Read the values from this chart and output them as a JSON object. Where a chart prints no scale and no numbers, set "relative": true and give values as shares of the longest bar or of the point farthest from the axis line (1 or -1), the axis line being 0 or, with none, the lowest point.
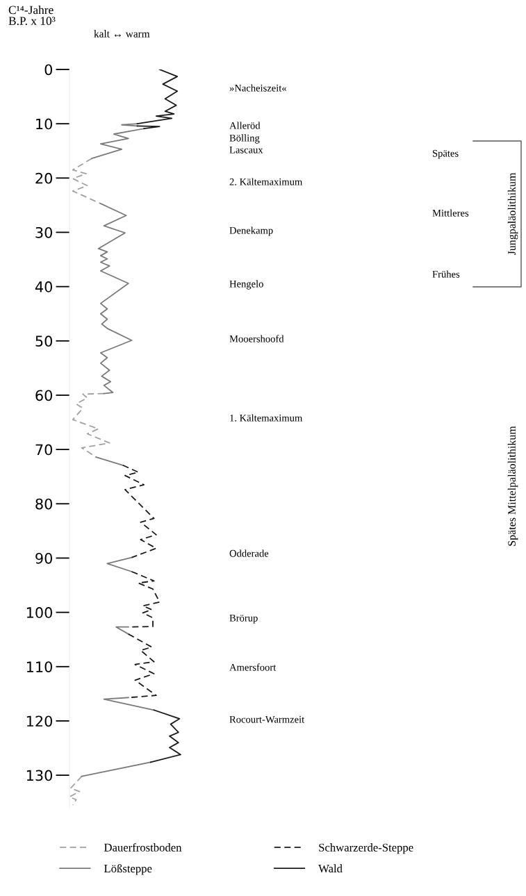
{
  "chart_data": {
    "type": "line",
    "orientation": "horizontal",
    "relative": true,
    "xlabel": "kalt ↔ warm",
    "ylabel": "C¹⁴-Jahre\nB.P. x 10³",
    "ylim": [
      136,
      0
    ],
    "yticks": [
      0,
      10,
      20,
      30,
      40,
      50,
      60,
      70,
      80,
      90,
      100,
      110,
      120,
      130
    ],
    "legend": "bottom",
    "series": [
      {
        "name": "Dauerfrostboden",
        "color": "#a0a0a0",
        "line_style": "dashed",
        "x": [
          16.4,
          18.5,
          19.2,
          20.1,
          21.4,
          22.4,
          24.7,
          null,
          59.7,
          59.8,
          60.5,
          61.6,
          62.4,
          64.5,
          66.2,
          67.1,
          68.8,
          69.7,
          71.4,
          null,
          130.2,
          132.4,
          133.0,
          134.0,
          134.5,
          135.5
        ],
        "values": [
          0.2,
          0.03,
          0.15,
          0.03,
          0.16,
          0.03,
          0.28,
          null,
          0.31,
          0.12,
          0.16,
          0.06,
          0.12,
          0.03,
          0.26,
          0.16,
          0.36,
          0.11,
          0.24,
          null,
          0.11,
          0.01,
          0.09,
          0,
          0.06,
          0.03
        ]
      },
      {
        "name": "Lößsteppe",
        "color": "#7a7a7a",
        "line_style": "solid",
        "x": [
          10.0,
          10.2,
          10.4,
          null,
          10.9,
          11.9,
          12.7,
          13.7,
          14.7,
          16.4,
          null,
          24.7,
          26.9,
          28.8,
          30.1,
          33.0,
          33.6,
          34.3,
          34.9,
          35.5,
          36.2,
          37.1,
          39.4,
          43.1,
          44.1,
          45.0,
          46.0,
          46.9,
          47.7,
          49.9,
          52.2,
          53.1,
          54.1,
          55.4,
          56.5,
          57.5,
          58.2,
          59.5,
          59.7,
          null,
          71.4,
          72.9,
          null,
          89.9,
          91.0,
          92.5,
          null,
          102.7,
          102.7,
          104.0,
          null,
          115.7,
          116.0,
          118.0,
          null,
          127.6,
          130.2
        ],
        "values": [
          0.61,
          0.47,
          0.61,
          null,
          0.67,
          0.4,
          0.53,
          0.28,
          0.47,
          0.2,
          null,
          0.28,
          0.51,
          0.31,
          0.5,
          0.26,
          0.34,
          0.28,
          0.34,
          0.28,
          0.36,
          0.28,
          0.53,
          0.28,
          0.34,
          0.28,
          0.34,
          0.29,
          0.34,
          0.56,
          0.28,
          0.34,
          0.28,
          0.36,
          0.29,
          0.37,
          0.31,
          0.39,
          0.31,
          null,
          0.24,
          0.48,
          null,
          0.56,
          0.34,
          0.56,
          null,
          0.53,
          0.42,
          0.53,
          null,
          0.53,
          0.31,
          0.76,
          null,
          0.73,
          0.11
        ]
      },
      {
        "name": "Schwarzerde-Steppe",
        "color": "#1a1a1a",
        "line_style": "dashed",
        "x": [
          72.9,
          74.2,
          74.8,
          76.5,
          77.4,
          82.7,
          83.4,
          85.7,
          86.6,
          88.2,
          89.9,
          null,
          92.5,
          94.2,
          94.6,
          95.7,
          98.1,
          98.8,
          99.5,
          100.1,
          101.0,
          102.6,
          102.7,
          null,
          104.0,
          106.4,
          107.0,
          109.1,
          109.6,
          111.3,
          112.5,
          115.3,
          115.7
        ],
        "values": [
          0.48,
          0.62,
          0.5,
          0.67,
          0.5,
          0.76,
          0.64,
          0.78,
          0.64,
          0.78,
          0.56,
          null,
          0.56,
          0.76,
          0.62,
          0.75,
          0.81,
          0.66,
          0.74,
          0.66,
          0.75,
          0.75,
          0.53,
          null,
          0.53,
          0.74,
          0.64,
          0.76,
          0.59,
          0.76,
          0.59,
          0.78,
          0.53
        ]
      },
      {
        "name": "Wald",
        "color": "#1a1a1a",
        "line_style": "solid",
        "x": [
          0,
          1.3,
          2.7,
          4.0,
          5.4,
          6.6,
          7.7,
          8.2,
          8.6,
          9.0,
          10.0,
          null,
          10.4,
          10.5,
          10.9,
          null,
          118.0,
          119.6,
          120.6,
          122.1,
          122.8,
          124.0,
          124.9,
          126.2,
          127.6
        ],
        "values": [
          0.81,
          0.97,
          0.84,
          0.97,
          0.86,
          0.96,
          0.86,
          0.94,
          0.78,
          0.92,
          0.61,
          null,
          0.61,
          0.81,
          0.67,
          null,
          0.76,
          0.99,
          0.91,
          0.98,
          0.9,
          0.98,
          0.9,
          1.0,
          0.73
        ]
      }
    ],
    "annotations": [
      "»Nacheiszeit«",
      "Alleröd",
      "Bölling",
      "Lascaux",
      "2. Kältemaximum",
      "Denekamp",
      "Hengelo",
      "Mooershoofd",
      "1. Kältemaximum",
      "Odderade",
      "Brörup",
      "Amersfoort",
      "Rocourt-Warmzeit",
      "Spätes",
      "Mittleres",
      "Frühes",
      "Jungpaläolithikum",
      "Spätes Mittelpaläolithikum"
    ]
  }
}
